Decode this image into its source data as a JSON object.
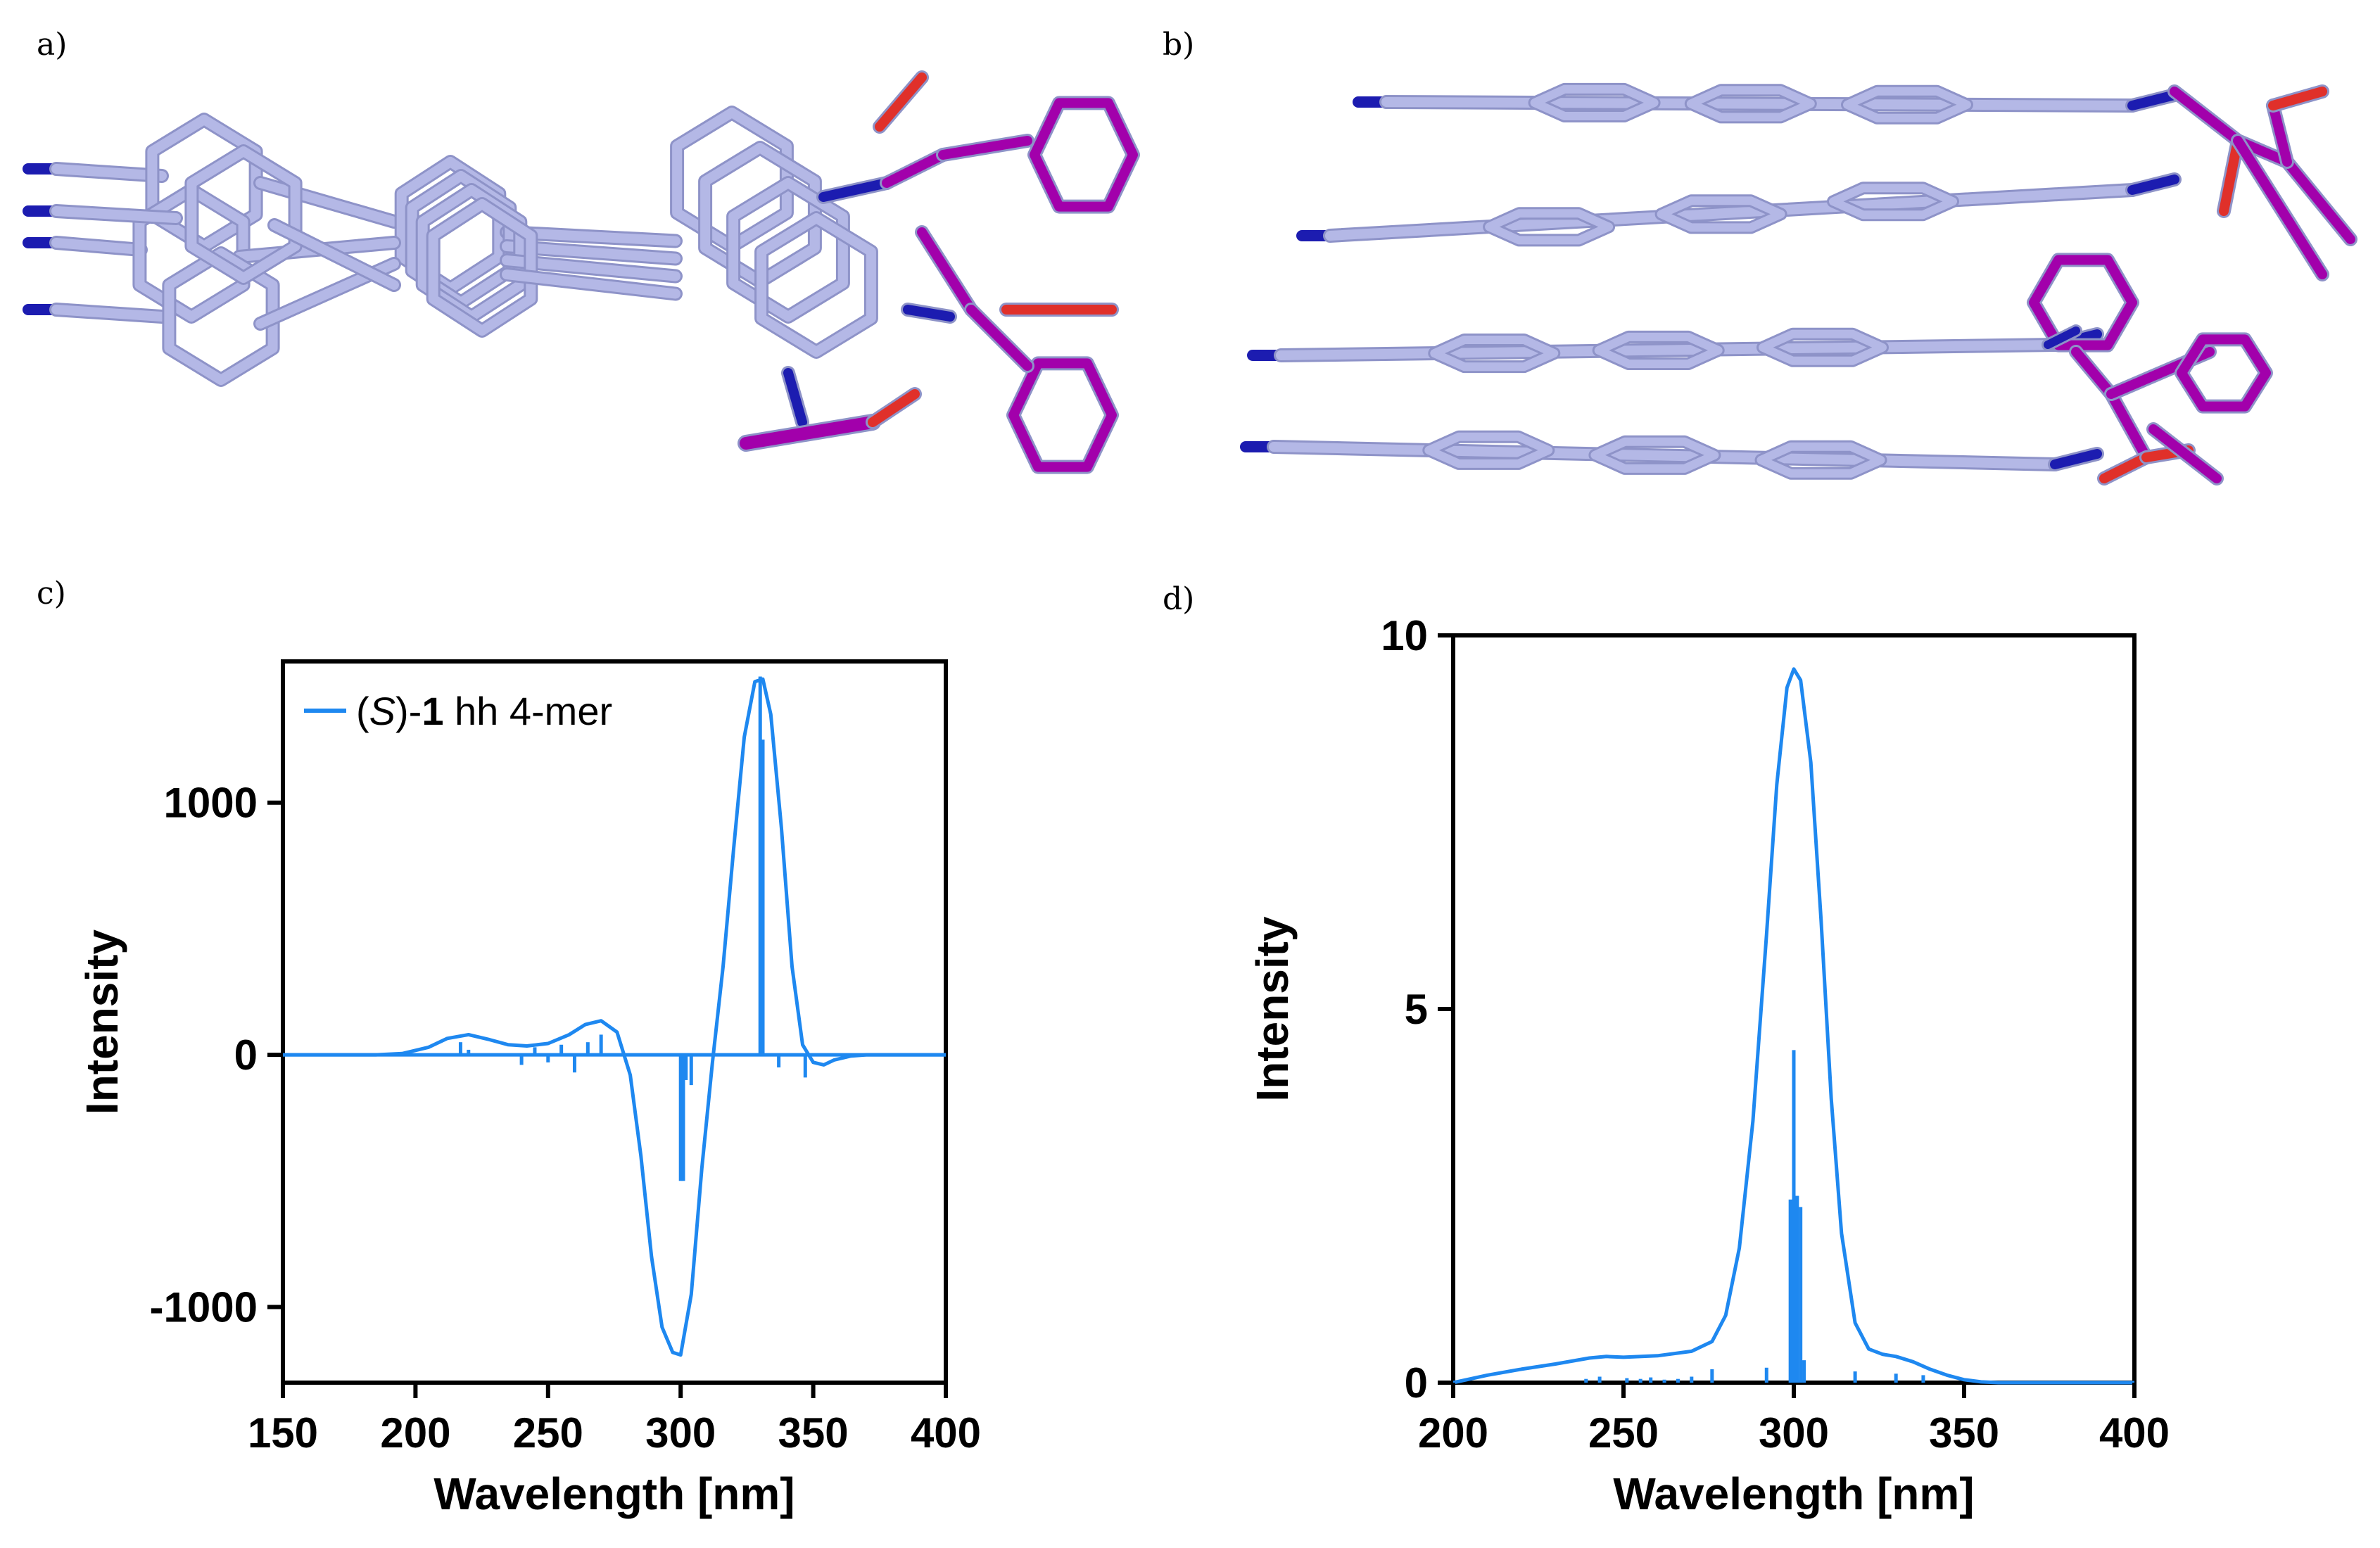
{
  "panels": {
    "a": "a)",
    "b": "b)",
    "c": "c)",
    "d": "d)"
  },
  "colors": {
    "scaffold": "#B4B8E6",
    "scaffold_edge": "#8E93C8",
    "substituent": "#A200AB",
    "nitrogen": "#1C1CB0",
    "oxygen": "#E0302A",
    "hydrogen": "#E8E8E8",
    "spectrum": "#1E88F0"
  },
  "molecules": {
    "a": {
      "name": "stacked oligomer end-on view"
    },
    "b": {
      "name": "stacked oligomer side view"
    }
  },
  "chart_data": [
    {
      "id": "c",
      "type": "line",
      "title": "",
      "xlabel": "Wavelength  [nm]",
      "ylabel": "Intensity",
      "xlim": [
        150,
        400
      ],
      "ylim": [
        -1300,
        1560
      ],
      "xticks": [
        150,
        200,
        250,
        300,
        350,
        400
      ],
      "yticks": [
        -1000,
        0,
        1000
      ],
      "ytick_labels": [
        "-1000",
        "0",
        "1000"
      ],
      "legend": {
        "placement": "top-left",
        "prefix": "(",
        "italic": "S",
        "middle": ")-",
        "bold": "1",
        "suffix": " hh 4-mer"
      },
      "grid": false,
      "series": [
        {
          "name": "(S)-1 hh 4-mer",
          "x": [
            150,
            185,
            195,
            205,
            212,
            220,
            228,
            235,
            242,
            250,
            258,
            264,
            270,
            276,
            281,
            285,
            289,
            293,
            297,
            300,
            304,
            308,
            312,
            316,
            320,
            324,
            328,
            331,
            334,
            338,
            342,
            346,
            350,
            354,
            358,
            364,
            370,
            380,
            400
          ],
          "y": [
            0,
            0,
            5,
            30,
            65,
            80,
            60,
            40,
            35,
            45,
            80,
            120,
            135,
            90,
            -80,
            -400,
            -800,
            -1080,
            -1180,
            -1190,
            -950,
            -450,
            -30,
            350,
            820,
            1260,
            1480,
            1490,
            1350,
            900,
            350,
            40,
            -30,
            -40,
            -20,
            -5,
            0,
            0,
            0
          ]
        }
      ],
      "sticks": {
        "x": [
          217,
          220,
          240,
          245,
          250,
          255,
          260,
          265,
          270,
          300,
          301,
          302,
          304,
          330,
          331,
          337,
          347
        ],
        "y": [
          50,
          20,
          -40,
          30,
          -30,
          40,
          -70,
          50,
          80,
          -500,
          -500,
          -100,
          -120,
          1500,
          1250,
          -50,
          -90
        ]
      }
    },
    {
      "id": "d",
      "type": "line",
      "title": "",
      "xlabel": "Wavelength  [nm]",
      "ylabel": "Intensity",
      "xlim": [
        200,
        400
      ],
      "ylim": [
        0,
        10
      ],
      "xticks": [
        200,
        250,
        300,
        350,
        400
      ],
      "yticks": [
        0,
        5,
        10
      ],
      "ytick_labels": [
        "0",
        "5",
        "10"
      ],
      "grid": false,
      "series": [
        {
          "name": "",
          "x": [
            200,
            210,
            220,
            230,
            240,
            245,
            250,
            260,
            270,
            276,
            280,
            284,
            288,
            292,
            295,
            298,
            300,
            302,
            305,
            308,
            311,
            314,
            318,
            322,
            326,
            330,
            335,
            340,
            345,
            350,
            355,
            360,
            365,
            370,
            380,
            400
          ],
          "y": [
            0,
            0.1,
            0.18,
            0.25,
            0.33,
            0.35,
            0.34,
            0.36,
            0.42,
            0.55,
            0.9,
            1.8,
            3.5,
            6.0,
            8.0,
            9.3,
            9.55,
            9.4,
            8.3,
            6.2,
            3.8,
            2.0,
            0.8,
            0.45,
            0.38,
            0.35,
            0.28,
            0.18,
            0.1,
            0.04,
            0.01,
            0,
            0,
            0,
            0,
            0
          ]
        }
      ],
      "sticks": {
        "x": [
          239,
          243,
          251,
          255,
          258,
          262,
          266,
          270,
          276,
          292,
          299,
          300,
          301,
          302,
          303,
          318,
          330,
          338
        ],
        "y": [
          0.05,
          0.08,
          0.06,
          0.05,
          0.07,
          0.04,
          0.05,
          0.08,
          0.18,
          0.2,
          2.45,
          4.45,
          2.5,
          2.35,
          0.3,
          0.15,
          0.12,
          0.1
        ]
      }
    }
  ]
}
